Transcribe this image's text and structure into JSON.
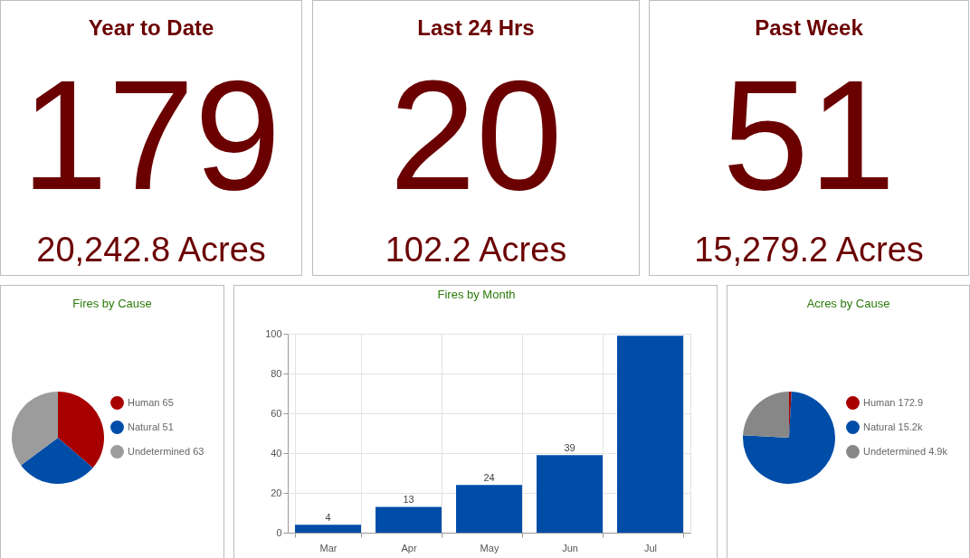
{
  "chart_data": [
    {
      "type": "other",
      "title": "Year to Date",
      "annotations": [
        "179",
        "20,242.8 Acres"
      ]
    },
    {
      "type": "other",
      "title": "Last 24 Hrs",
      "annotations": [
        "20",
        "102.2 Acres"
      ]
    },
    {
      "type": "other",
      "title": "Past Week",
      "annotations": [
        "51",
        "15,279.2 Acres"
      ]
    },
    {
      "type": "pie",
      "title": "Fires by Cause",
      "categories": [
        "Human",
        "Natural",
        "Undetermined"
      ],
      "values": [
        65,
        51,
        63
      ],
      "value_labels": [
        "65",
        "51",
        "63"
      ],
      "colors": [
        "#a80000",
        "#004da8",
        "#9c9c9c"
      ],
      "legend": "right"
    },
    {
      "type": "bar",
      "title": "Fires by Month",
      "categories": [
        "Mar",
        "Apr",
        "May",
        "Jun",
        "Jul"
      ],
      "values": [
        4,
        13,
        24,
        39,
        99
      ],
      "value_labels": [
        "4",
        "13",
        "24",
        "39",
        null
      ],
      "color": "#004da8",
      "ylim": [
        0,
        100
      ],
      "yticks": [
        0,
        20,
        40,
        60,
        80,
        100
      ],
      "grid": true
    },
    {
      "type": "pie",
      "title": "Acres by Cause",
      "categories": [
        "Human",
        "Natural",
        "Undetermined"
      ],
      "values": [
        172.9,
        15200,
        4900
      ],
      "value_labels": [
        "172.9",
        "15.2k",
        "4.9k"
      ],
      "colors": [
        "#a80000",
        "#004da8",
        "#878787"
      ],
      "legend": "right"
    }
  ]
}
